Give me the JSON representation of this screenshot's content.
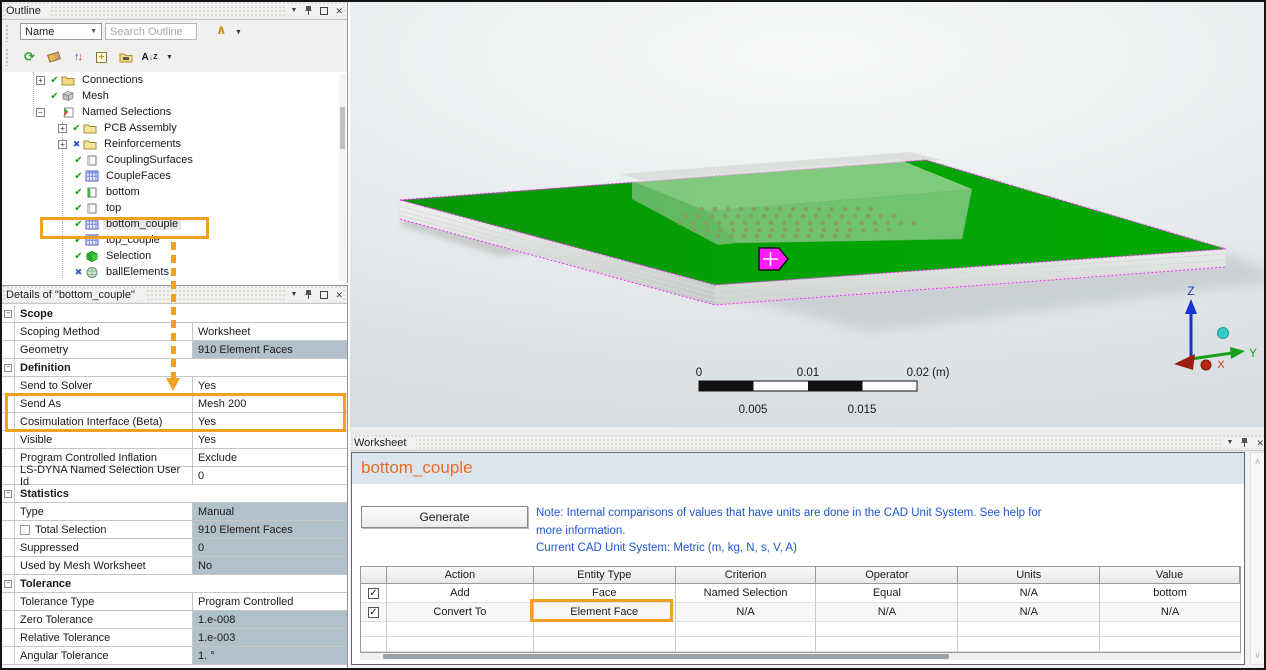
{
  "outline": {
    "title": "Outline",
    "filter_combo": {
      "value": "Name"
    },
    "search": {
      "placeholder": "Search Outline"
    },
    "tree": {
      "items": [
        {
          "label": "Connections",
          "icon": "folder-icon",
          "mark": "check"
        },
        {
          "label": "Mesh",
          "icon": "mesh-icon",
          "mark": "check"
        },
        {
          "label": "Named Selections",
          "icon": "named-selections-icon",
          "mark": "none"
        },
        {
          "label": "PCB Assembly",
          "icon": "folder-icon",
          "mark": "check"
        },
        {
          "label": "Reinforcements",
          "icon": "folder-icon",
          "mark": "x"
        },
        {
          "label": "CouplingSurfaces",
          "icon": "plate-icon",
          "mark": "check"
        },
        {
          "label": "CoupleFaces",
          "icon": "grid-icon",
          "mark": "check"
        },
        {
          "label": "bottom",
          "icon": "plate-green-icon",
          "mark": "check"
        },
        {
          "label": "top",
          "icon": "plate-icon",
          "mark": "check"
        },
        {
          "label": "bottom_couple",
          "icon": "grid-icon",
          "mark": "check",
          "selected": true
        },
        {
          "label": "top_couple",
          "icon": "grid-icon",
          "mark": "check"
        },
        {
          "label": "Selection",
          "icon": "cube-green-icon",
          "mark": "check"
        },
        {
          "label": "ballElements",
          "icon": "sphere-icon",
          "mark": "x"
        }
      ]
    }
  },
  "details": {
    "title": "Details of \"bottom_couple\"",
    "rows": [
      {
        "type": "section",
        "label": "Scope"
      },
      {
        "label": "Scoping Method",
        "value": "Worksheet"
      },
      {
        "label": "Geometry",
        "value": "910 Element Faces",
        "gray": true
      },
      {
        "type": "section",
        "label": "Definition"
      },
      {
        "label": "Send to Solver",
        "value": "Yes"
      },
      {
        "label": "Send As",
        "value": "Mesh 200"
      },
      {
        "label": "Cosimulation Interface (Beta)",
        "value": "Yes"
      },
      {
        "label": "Visible",
        "value": "Yes"
      },
      {
        "label": "Program Controlled Inflation",
        "value": "Exclude"
      },
      {
        "label": "LS-DYNA Named Selection User Id",
        "value": "0"
      },
      {
        "type": "section",
        "label": "Statistics"
      },
      {
        "label": "Type",
        "value": "Manual",
        "gray": true
      },
      {
        "label": "Total Selection",
        "value": "910 Element Faces",
        "gray": true,
        "checkbox": true
      },
      {
        "label": "Suppressed",
        "value": "0",
        "gray": true
      },
      {
        "label": "Used by Mesh Worksheet",
        "value": "No",
        "gray": true
      },
      {
        "type": "section",
        "label": "Tolerance"
      },
      {
        "label": "Tolerance Type",
        "value": "Program Controlled"
      },
      {
        "label": "Zero Tolerance",
        "value": "1.e-008",
        "gray": true
      },
      {
        "label": "Relative Tolerance",
        "value": "1.e-003",
        "gray": true
      },
      {
        "label": "Angular Tolerance",
        "value": "1. °",
        "gray": true
      }
    ]
  },
  "viewport": {
    "scale_bar": {
      "top_labels": [
        "0",
        "0.01",
        "0.02 (m)"
      ],
      "bottom_labels": [
        "0.005",
        "0.015"
      ]
    },
    "triad": {
      "x": "X",
      "y": "Y",
      "z": "Z"
    }
  },
  "worksheet": {
    "title": "Worksheet",
    "header": "bottom_couple",
    "generate_label": "Generate",
    "note_line1": "Note: Internal comparisons of values that have units are done in the CAD Unit System. See help for",
    "note_line2": "more information.",
    "note_line3": "Current CAD Unit System:  Metric (m, kg, N, s, V, A)",
    "table": {
      "columns": [
        "",
        "Action",
        "Entity Type",
        "Criterion",
        "Operator",
        "Units",
        "Value"
      ],
      "rows": [
        {
          "checked": true,
          "cells": [
            "Add",
            "Face",
            "Named Selection",
            "Equal",
            "N/A",
            "bottom"
          ]
        },
        {
          "checked": true,
          "cells": [
            "Convert To",
            "Element Face",
            "N/A",
            "N/A",
            "N/A",
            "N/A"
          ]
        }
      ]
    }
  },
  "colors": {
    "annotation_orange": "#f0a11f",
    "worksheet_header_orange": "#ea6b26",
    "note_blue": "#1d56cf",
    "board_green": "#04a104",
    "selection_magenta": "#ff1dff",
    "readonly_cell": "#b1c1cc"
  }
}
